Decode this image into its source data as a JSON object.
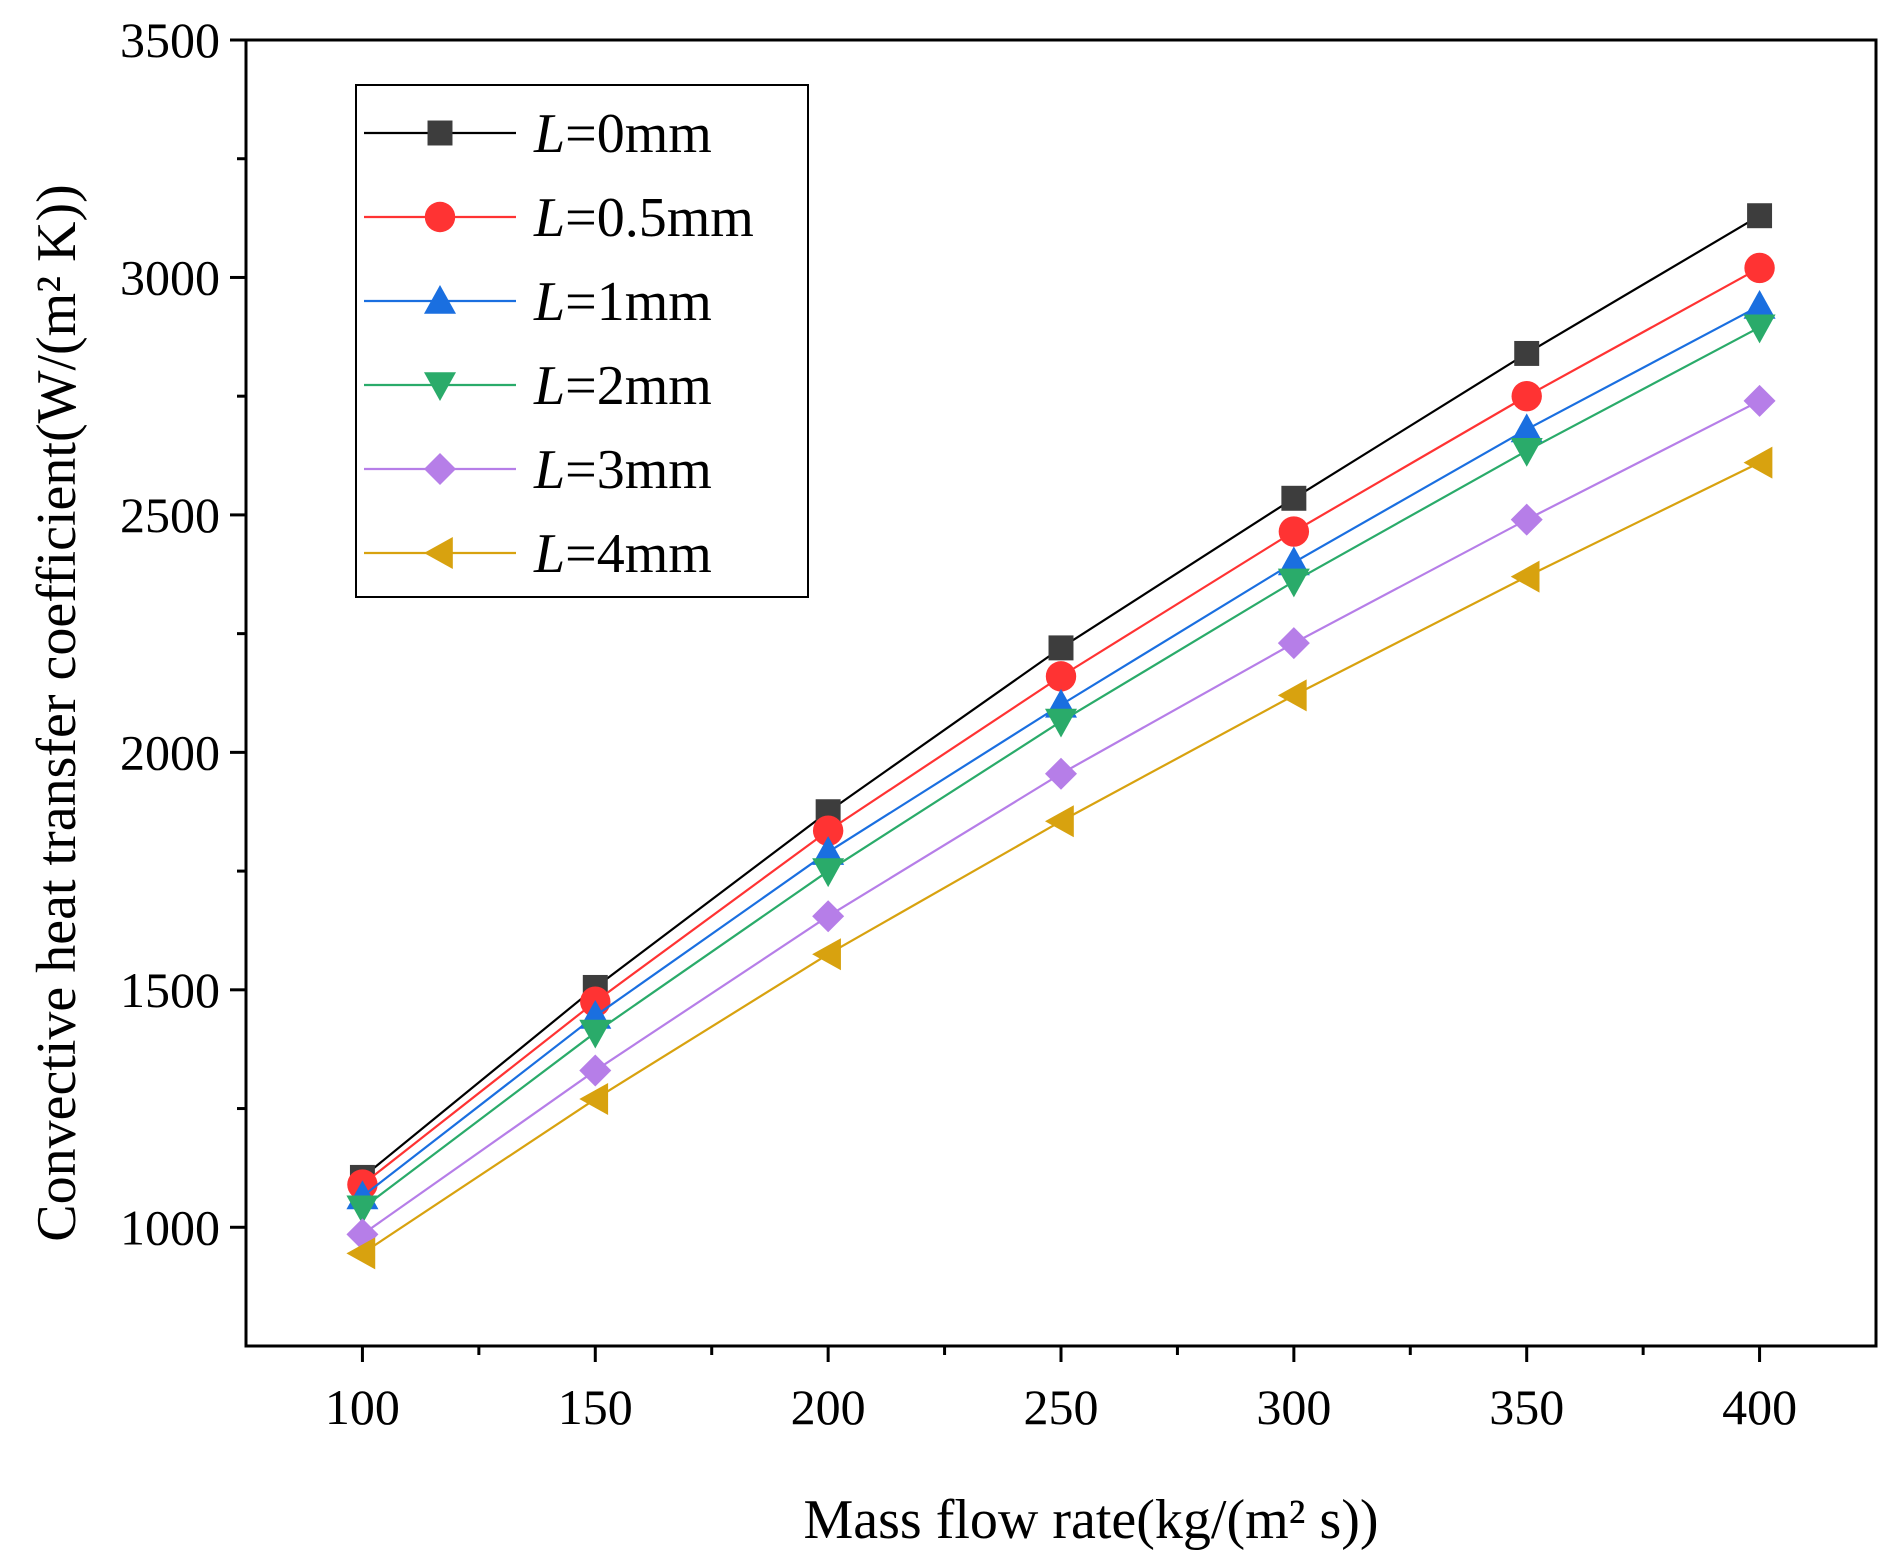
{
  "chart_data": {
    "type": "line",
    "title": "",
    "xlabel": "Mass flow rate(kg/(m² s))",
    "ylabel": "Convective heat transfer coefficient(W/(m² K))",
    "x": [
      100,
      150,
      200,
      250,
      300,
      350,
      400
    ],
    "xlim": [
      75,
      425
    ],
    "ylim": [
      750,
      3500
    ],
    "xticks": [
      100,
      150,
      200,
      250,
      300,
      350,
      400
    ],
    "yticks": [
      1000,
      1500,
      2000,
      2500,
      3000,
      3500
    ],
    "legend_position": "top-left",
    "series": [
      {
        "name": "L=0mm",
        "label_var": "L",
        "label_rest": "=0mm",
        "color": "#3d3d3d",
        "line_color": "#000000",
        "marker": "square",
        "values": [
          1105,
          1505,
          1875,
          2220,
          2535,
          2840,
          3130
        ]
      },
      {
        "name": "L=0.5mm",
        "label_var": "L",
        "label_rest": "=0.5mm",
        "color": "#ff3333",
        "line_color": "#ff3333",
        "marker": "circle",
        "values": [
          1090,
          1475,
          1835,
          2160,
          2465,
          2750,
          3020
        ]
      },
      {
        "name": "L=1mm",
        "label_var": "L",
        "label_rest": "=1mm",
        "color": "#1a6fe0",
        "line_color": "#1a6fe0",
        "marker": "triangle-up",
        "values": [
          1065,
          1445,
          1790,
          2100,
          2400,
          2680,
          2940
        ]
      },
      {
        "name": "L=2mm",
        "label_var": "L",
        "label_rest": "=2mm",
        "color": "#2aab6a",
        "line_color": "#2aab6a",
        "marker": "triangle-down",
        "values": [
          1040,
          1410,
          1750,
          2065,
          2360,
          2635,
          2895
        ]
      },
      {
        "name": "L=3mm",
        "label_var": "L",
        "label_rest": "=3mm",
        "color": "#b67ee8",
        "line_color": "#b67ee8",
        "marker": "diamond",
        "values": [
          985,
          1330,
          1655,
          1955,
          2230,
          2490,
          2740
        ]
      },
      {
        "name": "L=4mm",
        "label_var": "L",
        "label_rest": "=4mm",
        "color": "#d8a20f",
        "line_color": "#d8a20f",
        "marker": "triangle-left",
        "values": [
          945,
          1270,
          1575,
          1855,
          2120,
          2370,
          2610
        ]
      }
    ]
  }
}
